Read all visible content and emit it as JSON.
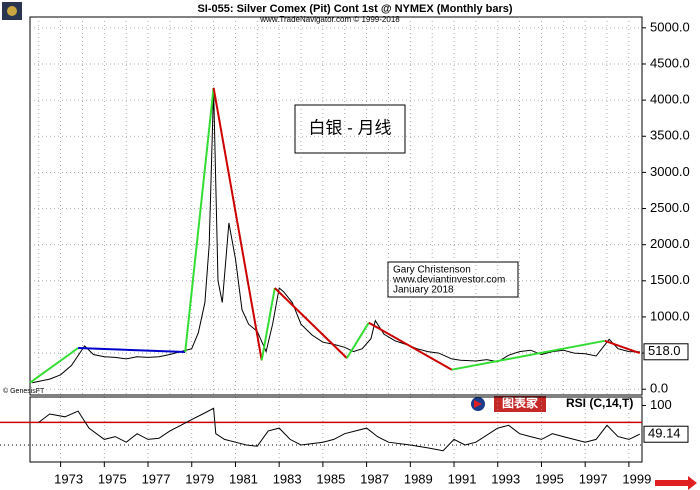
{
  "chart_data": [
    {
      "type": "line",
      "title": "SI-055:  Silver Comex (Pit) Cont 1st @ NYMEX  (Monthly bars)",
      "subtitle": "www.TradeNavigator.com © 1999-2018",
      "annotations": [
        "白银 - 月线",
        "Gary Christenson",
        "www.deviantinvestor.com",
        "January 2018",
        "© GenesisFT"
      ],
      "logo": "图表家",
      "color": "#000000",
      "x": [
        1971.7,
        1972.5,
        1973.0,
        1973.5,
        1974.1,
        1974.5,
        1975.0,
        1975.5,
        1976.0,
        1976.5,
        1977.0,
        1977.5,
        1978.0,
        1978.5,
        1979.0,
        1979.3,
        1979.6,
        1979.8,
        1980.0,
        1980.2,
        1980.4,
        1980.7,
        1981.0,
        1981.3,
        1981.6,
        1982.0,
        1982.4,
        1982.7,
        1983.0,
        1983.2,
        1983.6,
        1984.0,
        1984.5,
        1985.0,
        1985.5,
        1986.0,
        1986.4,
        1986.8,
        1987.2,
        1987.4,
        1987.8,
        1988.3,
        1988.8,
        1989.3,
        1989.8,
        1990.3,
        1990.9,
        1991.3,
        1992.0,
        1992.5,
        1993.0,
        1993.5,
        1994.0,
        1994.5,
        1995.0,
        1995.5,
        1996.0,
        1996.5,
        1997.0,
        1997.5,
        1998.1,
        1998.5,
        1999.0,
        1999.5
      ],
      "values": [
        90,
        140,
        200,
        330,
        600,
        480,
        450,
        440,
        420,
        450,
        440,
        450,
        480,
        520,
        560,
        780,
        1200,
        2000,
        4160,
        1500,
        1200,
        2300,
        1800,
        1100,
        900,
        800,
        520,
        900,
        1400,
        1350,
        1200,
        900,
        750,
        650,
        620,
        580,
        520,
        560,
        700,
        950,
        760,
        670,
        620,
        560,
        520,
        500,
        420,
        400,
        390,
        410,
        380,
        470,
        520,
        540,
        480,
        520,
        540,
        500,
        490,
        460,
        690,
        560,
        520,
        518
      ],
      "last_value": {
        "value": 518,
        "label": "518.0"
      },
      "trendlines": [
        {
          "color": "#33dd33",
          "x": [
            1971.6,
            1973.8
          ],
          "values": [
            90,
            570
          ]
        },
        {
          "color": "#0000cc",
          "x": [
            1973.8,
            1978.7
          ],
          "values": [
            570,
            515
          ]
        },
        {
          "color": "#33dd33",
          "x": [
            1978.7,
            1980.0
          ],
          "values": [
            515,
            4170
          ]
        },
        {
          "color": "#cc0000",
          "x": [
            1980.0,
            1982.2
          ],
          "values": [
            4170,
            400
          ]
        },
        {
          "color": "#33dd33",
          "x": [
            1982.2,
            1982.8
          ],
          "values": [
            400,
            1400
          ]
        },
        {
          "color": "#cc0000",
          "x": [
            1982.8,
            1986.1
          ],
          "values": [
            1400,
            430
          ]
        },
        {
          "color": "#33dd33",
          "x": [
            1986.1,
            1987.1
          ],
          "values": [
            430,
            920
          ]
        },
        {
          "color": "#cc0000",
          "x": [
            1987.1,
            1990.9
          ],
          "values": [
            920,
            270
          ]
        },
        {
          "color": "#33dd33",
          "x": [
            1990.9,
            1997.9
          ],
          "values": [
            270,
            670
          ]
        },
        {
          "color": "#cc0000",
          "x": [
            1997.9,
            1999.5
          ],
          "values": [
            670,
            500
          ]
        }
      ],
      "xlim": [
        1971.6,
        1999.6
      ],
      "xticks": [
        1973,
        1975,
        1977,
        1979,
        1981,
        1983,
        1985,
        1987,
        1989,
        1991,
        1993,
        1995,
        1997,
        1999
      ],
      "xminor": [
        1972,
        1974,
        1976,
        1978,
        1980,
        1982,
        1984,
        1986,
        1988,
        1990,
        1992,
        1994,
        1996,
        1998
      ],
      "ylim": [
        -80,
        5150
      ],
      "yticks": [
        {
          "value": 5000,
          "label": "5000.0"
        },
        {
          "value": 4500,
          "label": "4500.0"
        },
        {
          "value": 4000,
          "label": "4000.0"
        },
        {
          "value": 3500,
          "label": "3500.0"
        },
        {
          "value": 3000,
          "label": "3000.0"
        },
        {
          "value": 2500,
          "label": "2500.0"
        },
        {
          "value": 2000,
          "label": "2000.0"
        },
        {
          "value": 1500,
          "label": "1500.0"
        },
        {
          "value": 1000,
          "label": "1000.0"
        },
        {
          "value": 500,
          "label": "500.0"
        },
        {
          "value": 0,
          "label": "0.0"
        }
      ],
      "grid": true
    },
    {
      "type": "line",
      "title": "RSI (C,14,T)",
      "color": "#000000",
      "x": [
        1972.0,
        1972.5,
        1973.2,
        1973.8,
        1974.3,
        1975.0,
        1975.5,
        1976.0,
        1976.5,
        1977.0,
        1977.5,
        1978.0,
        1978.5,
        1979.0,
        1979.5,
        1980.0,
        1980.1,
        1980.5,
        1981.0,
        1981.5,
        1982.0,
        1982.5,
        1983.0,
        1983.5,
        1984.0,
        1985.0,
        1985.5,
        1986.0,
        1987.0,
        1987.5,
        1988.0,
        1989.0,
        1989.8,
        1990.5,
        1991.0,
        1991.5,
        1992.0,
        1993.0,
        1993.5,
        1994.0,
        1994.5,
        1995.0,
        1995.5,
        1996.0,
        1997.0,
        1997.5,
        1998.0,
        1998.5,
        1999.0,
        1999.5
      ],
      "values": [
        70,
        85,
        80,
        90,
        60,
        40,
        45,
        35,
        50,
        40,
        42,
        55,
        65,
        75,
        85,
        95,
        50,
        40,
        35,
        30,
        28,
        55,
        60,
        40,
        30,
        35,
        40,
        50,
        60,
        45,
        35,
        30,
        25,
        20,
        40,
        30,
        35,
        60,
        65,
        50,
        45,
        40,
        50,
        45,
        35,
        40,
        65,
        45,
        40,
        49.14
      ],
      "last_value": 49.14,
      "reference_lines": [
        {
          "value": 70,
          "color": "#cc0000",
          "style": "solid"
        },
        {
          "value": 30,
          "color": "#000000",
          "style": "dotted"
        }
      ],
      "xlim": [
        1971.6,
        1999.6
      ],
      "ylim": [
        0,
        115
      ],
      "yticks": [
        100
      ]
    }
  ]
}
